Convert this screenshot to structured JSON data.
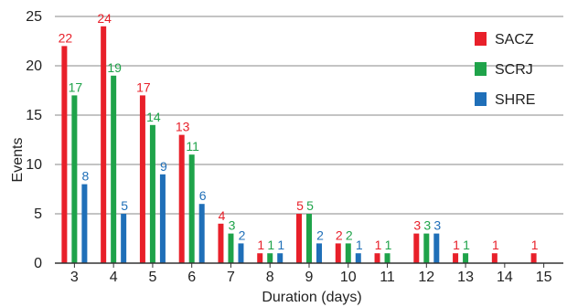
{
  "chart_data": {
    "type": "bar",
    "categories": [
      "3",
      "4",
      "5",
      "6",
      "7",
      "8",
      "9",
      "10",
      "11",
      "12",
      "13",
      "14",
      "15"
    ],
    "series": [
      {
        "name": "SACZ",
        "color": "#e8202a",
        "values": [
          22,
          24,
          17,
          13,
          4,
          1,
          5,
          2,
          1,
          3,
          1,
          1,
          1
        ]
      },
      {
        "name": "SCRJ",
        "color": "#1fa34a",
        "values": [
          17,
          19,
          14,
          11,
          3,
          1,
          5,
          2,
          1,
          3,
          1,
          0,
          0
        ]
      },
      {
        "name": "SHRE",
        "color": "#1f6fb8",
        "values": [
          8,
          5,
          9,
          6,
          2,
          1,
          2,
          1,
          0,
          3,
          0,
          0,
          0
        ]
      }
    ],
    "title": "",
    "xlabel": "Duration (days)",
    "ylabel": "Events",
    "ylim": [
      0,
      25
    ],
    "yticks": [
      "0",
      "5",
      "10",
      "15",
      "20",
      "25"
    ],
    "grid": "horizontal",
    "legend_position": "top-right"
  }
}
